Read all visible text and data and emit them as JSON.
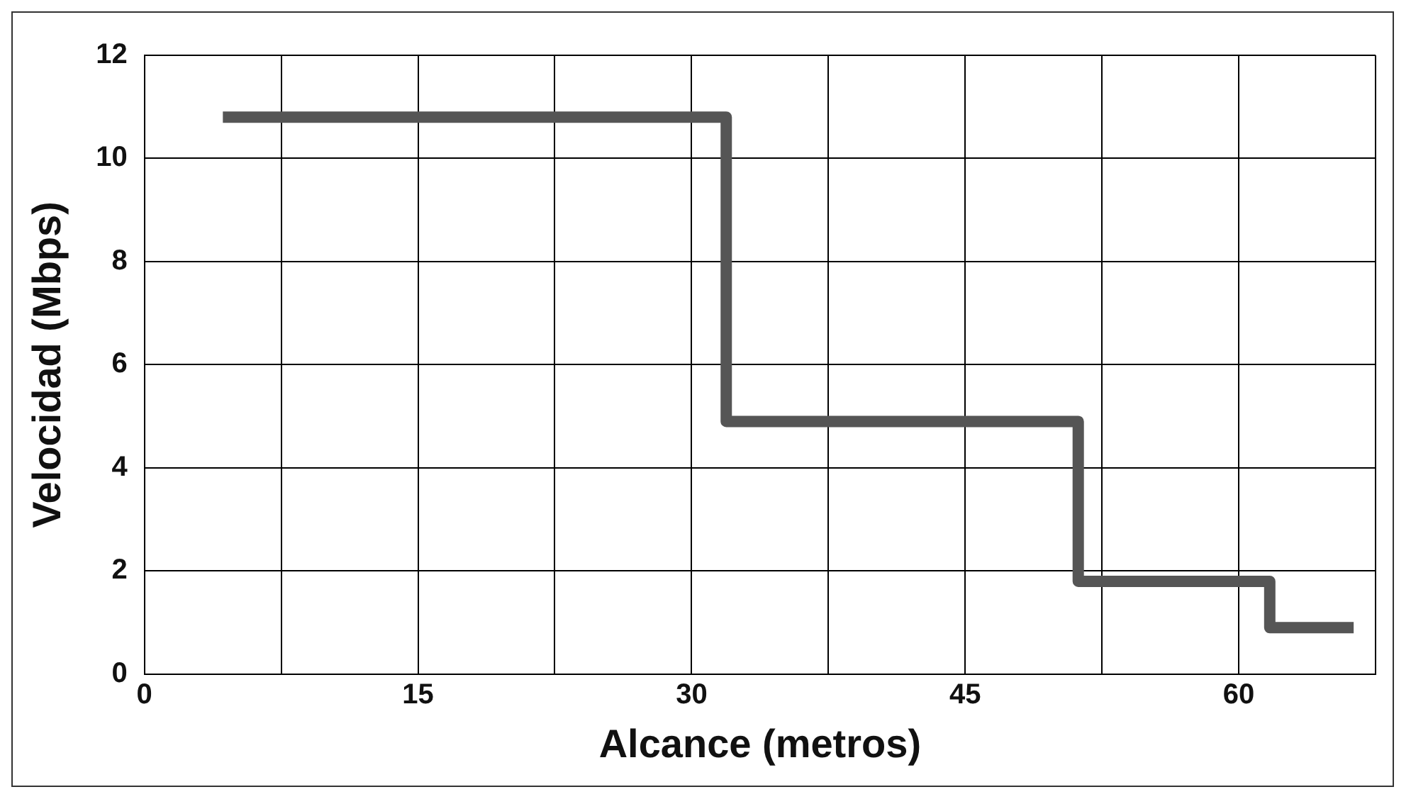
{
  "chart_data": {
    "type": "step",
    "xlabel": "Alcance (metros)",
    "ylabel": "Velocidad (Mbps)",
    "x": [
      4.3,
      31.9,
      51.2,
      61.7,
      66.3
    ],
    "series": [
      {
        "color": "#555555",
        "values": [
          10.8,
          4.9,
          1.8,
          0.9,
          0.9
        ]
      }
    ],
    "xlim": [
      0,
      67.5
    ],
    "xticks": [
      0,
      {
        "value": 7.5,
        "label": null
      },
      15,
      {
        "value": 22.5,
        "label": null
      },
      30,
      {
        "value": 37.5,
        "label": null
      },
      45,
      {
        "value": 52.5,
        "label": null
      },
      60,
      {
        "value": 67.5,
        "label": null
      }
    ],
    "ylim": [
      0,
      12
    ],
    "yticks": [
      0,
      2,
      4,
      6,
      8,
      10,
      12
    ],
    "grid": true,
    "legend": false,
    "marker": "none",
    "line_style": "solid"
  }
}
